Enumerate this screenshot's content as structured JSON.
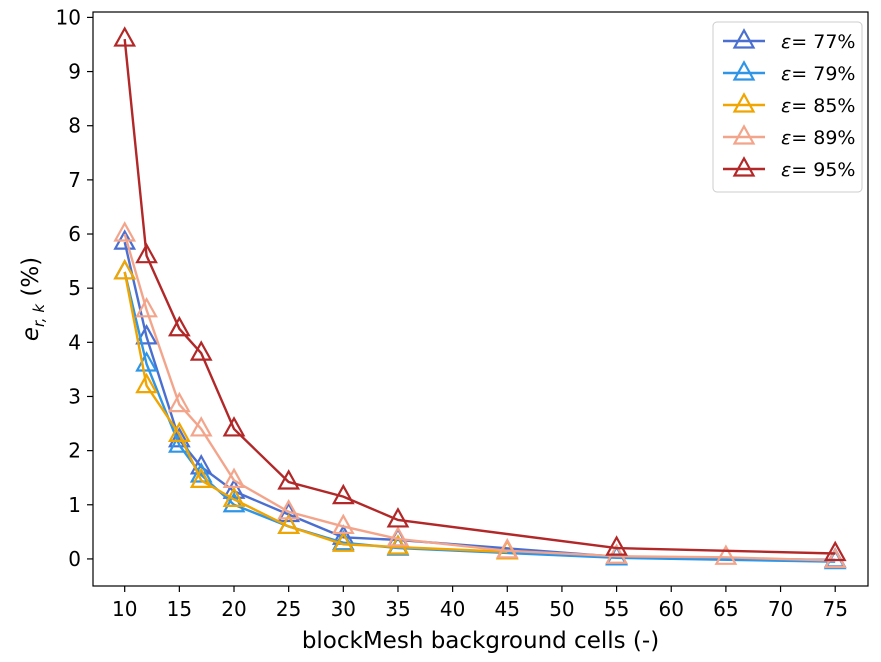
{
  "chart_data": {
    "type": "line",
    "title": "",
    "xlabel": "blockMesh background cells (-)",
    "ylabel_main": "e",
    "ylabel_sub": "r, k",
    "ylabel_unit": " (%)",
    "xlim": [
      7.1,
      78
    ],
    "ylim": [
      -0.5,
      10.1
    ],
    "xticks": [
      10,
      15,
      20,
      25,
      30,
      35,
      40,
      45,
      50,
      55,
      60,
      65,
      70,
      75
    ],
    "yticks": [
      0,
      1,
      2,
      3,
      4,
      5,
      6,
      7,
      8,
      9,
      10
    ],
    "grid": false,
    "legend_position": "top-right",
    "marker": "triangle-open",
    "series": [
      {
        "name": "77%",
        "color": "#4a6fd0",
        "x": [
          10,
          12,
          15,
          17,
          20,
          25,
          30,
          35,
          55,
          75
        ],
        "y": [
          5.85,
          4.1,
          2.2,
          1.7,
          1.25,
          0.82,
          0.4,
          0.35,
          0.04,
          -0.02
        ]
      },
      {
        "name": "79%",
        "color": "#2f95e6",
        "x": [
          10,
          12,
          15,
          17,
          20,
          25,
          30,
          35,
          55,
          75
        ],
        "y": [
          5.3,
          3.6,
          2.1,
          1.55,
          1.0,
          0.6,
          0.3,
          0.2,
          0.02,
          -0.05
        ]
      },
      {
        "name": "85%",
        "color": "#f0a500",
        "x": [
          10,
          12,
          15,
          17,
          20,
          25,
          30,
          35,
          45
        ],
        "y": [
          5.3,
          3.2,
          2.3,
          1.45,
          1.1,
          0.6,
          0.27,
          0.22,
          0.13
        ]
      },
      {
        "name": "89%",
        "color": "#f3a58b",
        "x": [
          10,
          12,
          15,
          17,
          20,
          25,
          30,
          35,
          45,
          55,
          65,
          75
        ],
        "y": [
          6.0,
          4.6,
          2.85,
          2.4,
          1.45,
          0.87,
          0.6,
          0.37,
          0.15,
          0.05,
          0.03,
          -0.03
        ]
      },
      {
        "name": "95%",
        "color": "#b22828",
        "x": [
          10,
          12,
          15,
          17,
          20,
          25,
          30,
          35,
          55,
          75
        ],
        "y": [
          9.6,
          5.6,
          4.25,
          3.8,
          2.4,
          1.42,
          1.15,
          0.72,
          0.2,
          0.1
        ]
      }
    ],
    "legend_prefix": "ε= "
  }
}
